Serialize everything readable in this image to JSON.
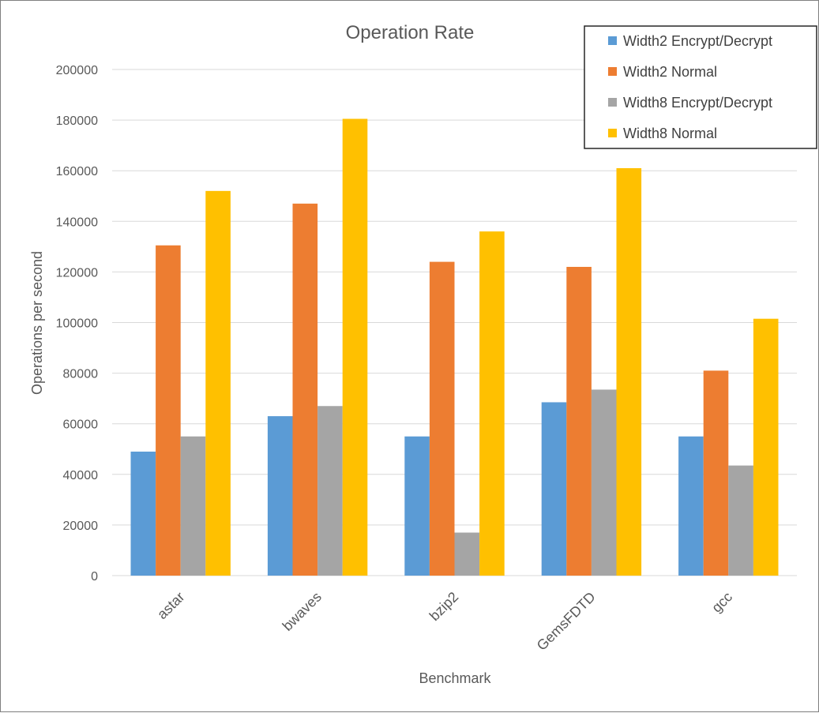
{
  "chart_data": {
    "type": "bar",
    "title": "Operation Rate",
    "xlabel": "Benchmark",
    "ylabel": "Operations per second",
    "ylim": [
      0,
      200000
    ],
    "yticks": [
      "0",
      "20000",
      "40000",
      "60000",
      "80000",
      "100000",
      "120000",
      "140000",
      "160000",
      "180000",
      "200000"
    ],
    "grid": true,
    "legend_position": "top-right",
    "categories": [
      "astar",
      "bwaves",
      "bzip2",
      "GemsFDTD",
      "gcc"
    ],
    "series": [
      {
        "name": "Width2 Encrypt/Decrypt",
        "color": "#5b9bd5",
        "values": [
          49000,
          63000,
          55000,
          68500,
          55000
        ]
      },
      {
        "name": "Width2 Normal",
        "color": "#ed7d31",
        "values": [
          130500,
          147000,
          124000,
          122000,
          81000
        ]
      },
      {
        "name": "Width8 Encrypt/Decrypt",
        "color": "#a5a5a5",
        "values": [
          55000,
          67000,
          17000,
          73500,
          43500
        ]
      },
      {
        "name": "Width8 Normal",
        "color": "#ffc000",
        "values": [
          152000,
          180500,
          136000,
          161000,
          101500
        ]
      }
    ]
  }
}
